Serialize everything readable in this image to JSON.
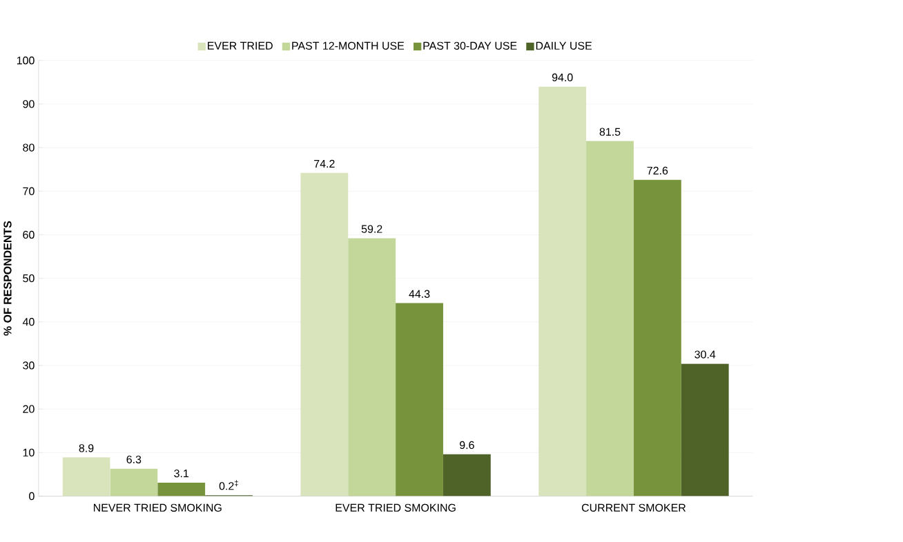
{
  "chart_data": {
    "type": "bar",
    "ylabel": "% OF RESPONDENTS",
    "categories": [
      "NEVER TRIED SMOKING",
      "EVER TRIED SMOKING",
      "CURRENT SMOKER"
    ],
    "series": [
      {
        "name": "EVER TRIED",
        "color": "#d9e4bd",
        "values": [
          8.9,
          74.2,
          94.0
        ],
        "value_labels": [
          "8.9",
          "74.2",
          "94.0"
        ]
      },
      {
        "name": "PAST 12-MONTH USE",
        "color": "#c4d79b",
        "values": [
          6.3,
          59.2,
          81.5
        ],
        "value_labels": [
          "6.3",
          "59.2",
          "81.5"
        ]
      },
      {
        "name": "PAST 30-DAY USE",
        "color": "#77933c",
        "values": [
          3.1,
          44.3,
          72.6
        ],
        "value_labels": [
          "3.1",
          "44.3",
          "72.6"
        ]
      },
      {
        "name": "DAILY USE",
        "color": "#4f6228",
        "values": [
          0.2,
          9.6,
          30.4
        ],
        "value_labels": [
          "0.2$^{‡}$",
          "9.6",
          "30.4"
        ]
      }
    ],
    "ylim": [
      0,
      100
    ],
    "yticks": [
      0,
      10,
      20,
      30,
      40,
      50,
      60,
      70,
      80,
      90,
      100
    ],
    "grid": "y",
    "legend": "top"
  }
}
